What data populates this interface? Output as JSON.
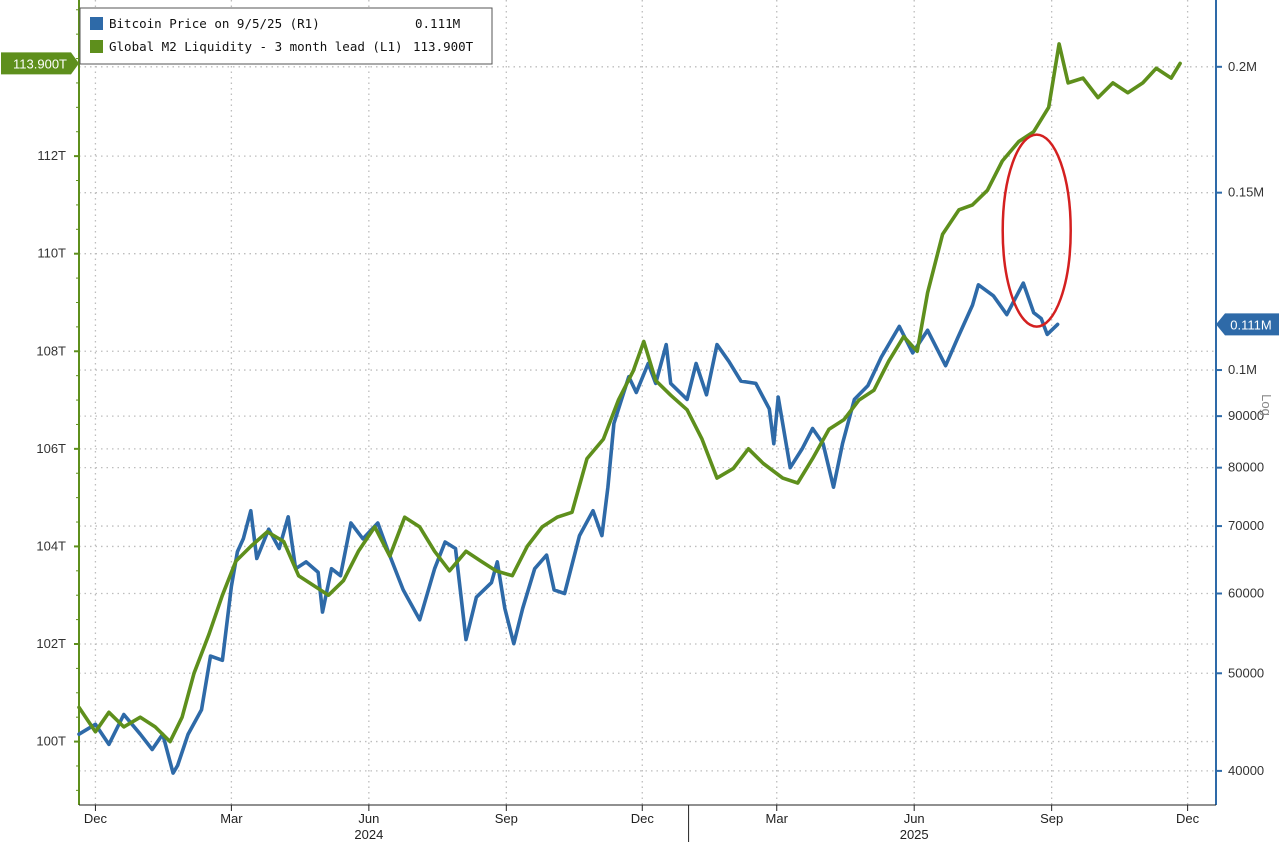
{
  "chart_data": {
    "type": "line",
    "title": "",
    "legend": {
      "placement": "top-left",
      "entries": [
        {
          "label": "Bitcoin Price on 9/5/25 (R1)",
          "value": "0.111M",
          "color": "#2e6aa8"
        },
        {
          "label": "Global M2 Liquidity - 3 month lead (L1)",
          "value": "113.900T",
          "color": "#5e8f1c"
        }
      ]
    },
    "left_axis": {
      "ylim": [
        98.7,
        115.2
      ],
      "ticks": [
        100,
        102,
        104,
        106,
        108,
        110,
        112
      ],
      "tick_labels": [
        "100T",
        "102T",
        "104T",
        "106T",
        "108T",
        "110T",
        "112T"
      ],
      "last_value_label": "113.900T",
      "last_value": 113.9
    },
    "right_axis": {
      "scale": "log",
      "scale_label": "Log",
      "ylim": [
        37000,
        233000
      ],
      "ticks": [
        40000,
        50000,
        60000,
        70000,
        80000,
        90000,
        100000,
        150000,
        200000
      ],
      "tick_labels": [
        "40000",
        "50000",
        "60000",
        "70000",
        "80000",
        "90000",
        "0.1M",
        "0.15M",
        "0.2M"
      ],
      "last_value_label": "0.111M",
      "last_value": 111000
    },
    "x_axis": {
      "range": [
        "2023-11-20",
        "2025-12-20"
      ],
      "month_ticks": [
        {
          "label": "Dec",
          "date": "2023-12-01"
        },
        {
          "label": "Mar",
          "date": "2024-03-01"
        },
        {
          "label": "Jun",
          "date": "2024-06-01"
        },
        {
          "label": "Sep",
          "date": "2024-09-01"
        },
        {
          "label": "Dec",
          "date": "2024-12-01"
        },
        {
          "label": "Mar",
          "date": "2025-03-01"
        },
        {
          "label": "Jun",
          "date": "2025-06-01"
        },
        {
          "label": "Sep",
          "date": "2025-09-01"
        },
        {
          "label": "Dec",
          "date": "2025-12-01"
        }
      ],
      "year_labels": [
        {
          "label": "2024",
          "date": "2024-06-01"
        },
        {
          "label": "2025",
          "date": "2025-06-01"
        }
      ]
    },
    "grid": true,
    "series": [
      {
        "name": "Bitcoin Price on 9/5/25 (R1)",
        "axis": "right",
        "color": "#2e6aa8",
        "points": [
          [
            "2023-11-20",
            43500
          ],
          [
            "2023-12-01",
            44500
          ],
          [
            "2023-12-10",
            42500
          ],
          [
            "2023-12-20",
            45500
          ],
          [
            "2023-12-31",
            43500
          ],
          [
            "2024-01-08",
            42000
          ],
          [
            "2024-01-15",
            43500
          ],
          [
            "2024-01-22",
            39800
          ],
          [
            "2024-01-25",
            40500
          ],
          [
            "2024-02-01",
            43500
          ],
          [
            "2024-02-10",
            46000
          ],
          [
            "2024-02-16",
            52000
          ],
          [
            "2024-02-24",
            51500
          ],
          [
            "2024-03-01",
            61000
          ],
          [
            "2024-03-05",
            66000
          ],
          [
            "2024-03-09",
            68000
          ],
          [
            "2024-03-14",
            72500
          ],
          [
            "2024-03-18",
            65000
          ],
          [
            "2024-03-26",
            69500
          ],
          [
            "2024-04-02",
            66500
          ],
          [
            "2024-04-08",
            71500
          ],
          [
            "2024-04-13",
            63500
          ],
          [
            "2024-04-20",
            64500
          ],
          [
            "2024-04-28",
            63000
          ],
          [
            "2024-05-01",
            57500
          ],
          [
            "2024-05-07",
            63500
          ],
          [
            "2024-05-13",
            62500
          ],
          [
            "2024-05-20",
            70500
          ],
          [
            "2024-05-28",
            68000
          ],
          [
            "2024-06-07",
            70500
          ],
          [
            "2024-06-14",
            66000
          ],
          [
            "2024-06-24",
            60500
          ],
          [
            "2024-07-05",
            56500
          ],
          [
            "2024-07-15",
            63500
          ],
          [
            "2024-07-22",
            67500
          ],
          [
            "2024-07-29",
            66500
          ],
          [
            "2024-08-05",
            54000
          ],
          [
            "2024-08-12",
            59500
          ],
          [
            "2024-08-22",
            61500
          ],
          [
            "2024-08-26",
            64500
          ],
          [
            "2024-08-31",
            58000
          ],
          [
            "2024-09-06",
            53500
          ],
          [
            "2024-09-12",
            58000
          ],
          [
            "2024-09-20",
            63500
          ],
          [
            "2024-09-28",
            65500
          ],
          [
            "2024-10-03",
            60500
          ],
          [
            "2024-10-10",
            60000
          ],
          [
            "2024-10-20",
            68500
          ],
          [
            "2024-10-29",
            72500
          ],
          [
            "2024-11-04",
            68500
          ],
          [
            "2024-11-08",
            76500
          ],
          [
            "2024-11-12",
            88500
          ],
          [
            "2024-11-22",
            98500
          ],
          [
            "2024-11-27",
            95000
          ],
          [
            "2024-12-05",
            101500
          ],
          [
            "2024-12-10",
            97000
          ],
          [
            "2024-12-17",
            106000
          ],
          [
            "2024-12-20",
            97000
          ],
          [
            "2024-12-31",
            93500
          ],
          [
            "2025-01-06",
            101500
          ],
          [
            "2025-01-13",
            94500
          ],
          [
            "2025-01-20",
            106000
          ],
          [
            "2025-01-28",
            102000
          ],
          [
            "2025-02-05",
            97500
          ],
          [
            "2025-02-15",
            97000
          ],
          [
            "2025-02-24",
            91500
          ],
          [
            "2025-02-27",
            84500
          ],
          [
            "2025-03-02",
            94000
          ],
          [
            "2025-03-10",
            80000
          ],
          [
            "2025-03-18",
            83500
          ],
          [
            "2025-03-25",
            87500
          ],
          [
            "2025-04-01",
            84500
          ],
          [
            "2025-04-08",
            76500
          ],
          [
            "2025-04-14",
            84500
          ],
          [
            "2025-04-22",
            93500
          ],
          [
            "2025-05-01",
            96500
          ],
          [
            "2025-05-10",
            103000
          ],
          [
            "2025-05-22",
            110500
          ],
          [
            "2025-05-31",
            104000
          ],
          [
            "2025-06-10",
            109500
          ],
          [
            "2025-06-22",
            101000
          ],
          [
            "2025-06-30",
            107500
          ],
          [
            "2025-07-10",
            116000
          ],
          [
            "2025-07-14",
            121500
          ],
          [
            "2025-07-24",
            118500
          ],
          [
            "2025-08-02",
            113500
          ],
          [
            "2025-08-13",
            122000
          ],
          [
            "2025-08-20",
            114000
          ],
          [
            "2025-08-25",
            112500
          ],
          [
            "2025-08-29",
            108500
          ],
          [
            "2025-09-05",
            111000
          ]
        ]
      },
      {
        "name": "Global M2 Liquidity - 3 month lead (L1)",
        "axis": "left",
        "color": "#5e8f1c",
        "points": [
          [
            "2023-11-20",
            100.7
          ],
          [
            "2023-12-01",
            100.2
          ],
          [
            "2023-12-10",
            100.6
          ],
          [
            "2023-12-20",
            100.3
          ],
          [
            "2023-12-31",
            100.5
          ],
          [
            "2024-01-10",
            100.3
          ],
          [
            "2024-01-20",
            100.0
          ],
          [
            "2024-01-28",
            100.5
          ],
          [
            "2024-02-05",
            101.4
          ],
          [
            "2024-02-15",
            102.2
          ],
          [
            "2024-02-24",
            103.0
          ],
          [
            "2024-03-04",
            103.7
          ],
          [
            "2024-03-14",
            104.0
          ],
          [
            "2024-03-25",
            104.3
          ],
          [
            "2024-04-05",
            104.1
          ],
          [
            "2024-04-15",
            103.4
          ],
          [
            "2024-04-25",
            103.2
          ],
          [
            "2024-05-05",
            103.0
          ],
          [
            "2024-05-15",
            103.3
          ],
          [
            "2024-05-25",
            103.9
          ],
          [
            "2024-06-05",
            104.4
          ],
          [
            "2024-06-15",
            103.8
          ],
          [
            "2024-06-25",
            104.6
          ],
          [
            "2024-07-05",
            104.4
          ],
          [
            "2024-07-15",
            103.9
          ],
          [
            "2024-07-25",
            103.5
          ],
          [
            "2024-08-05",
            103.9
          ],
          [
            "2024-08-15",
            103.7
          ],
          [
            "2024-08-25",
            103.5
          ],
          [
            "2024-09-05",
            103.4
          ],
          [
            "2024-09-15",
            104.0
          ],
          [
            "2024-09-25",
            104.4
          ],
          [
            "2024-10-05",
            104.6
          ],
          [
            "2024-10-15",
            104.7
          ],
          [
            "2024-10-25",
            105.8
          ],
          [
            "2024-11-05",
            106.2
          ],
          [
            "2024-11-15",
            107.0
          ],
          [
            "2024-11-25",
            107.6
          ],
          [
            "2024-12-02",
            108.2
          ],
          [
            "2024-12-10",
            107.4
          ],
          [
            "2024-12-20",
            107.1
          ],
          [
            "2024-12-31",
            106.8
          ],
          [
            "2025-01-10",
            106.2
          ],
          [
            "2025-01-20",
            105.4
          ],
          [
            "2025-01-31",
            105.6
          ],
          [
            "2025-02-10",
            106.0
          ],
          [
            "2025-02-20",
            105.7
          ],
          [
            "2025-03-05",
            105.4
          ],
          [
            "2025-03-15",
            105.3
          ],
          [
            "2025-03-25",
            105.8
          ],
          [
            "2025-04-05",
            106.4
          ],
          [
            "2025-04-15",
            106.6
          ],
          [
            "2025-04-25",
            107.0
          ],
          [
            "2025-05-05",
            107.2
          ],
          [
            "2025-05-15",
            107.8
          ],
          [
            "2025-05-25",
            108.3
          ],
          [
            "2025-06-03",
            108.0
          ],
          [
            "2025-06-10",
            109.2
          ],
          [
            "2025-06-20",
            110.4
          ],
          [
            "2025-07-01",
            110.9
          ],
          [
            "2025-07-10",
            111.0
          ],
          [
            "2025-07-20",
            111.3
          ],
          [
            "2025-07-30",
            111.9
          ],
          [
            "2025-08-10",
            112.3
          ],
          [
            "2025-08-20",
            112.5
          ],
          [
            "2025-08-30",
            113.0
          ],
          [
            "2025-09-06",
            114.3
          ],
          [
            "2025-09-12",
            113.5
          ],
          [
            "2025-09-22",
            113.6
          ],
          [
            "2025-10-02",
            113.2
          ],
          [
            "2025-10-12",
            113.5
          ],
          [
            "2025-10-22",
            113.3
          ],
          [
            "2025-11-01",
            113.5
          ],
          [
            "2025-11-10",
            113.8
          ],
          [
            "2025-11-20",
            113.6
          ],
          [
            "2025-11-26",
            113.9
          ]
        ]
      }
    ],
    "annotations": [
      {
        "shape": "ellipse",
        "color": "#d42020"
      }
    ]
  }
}
